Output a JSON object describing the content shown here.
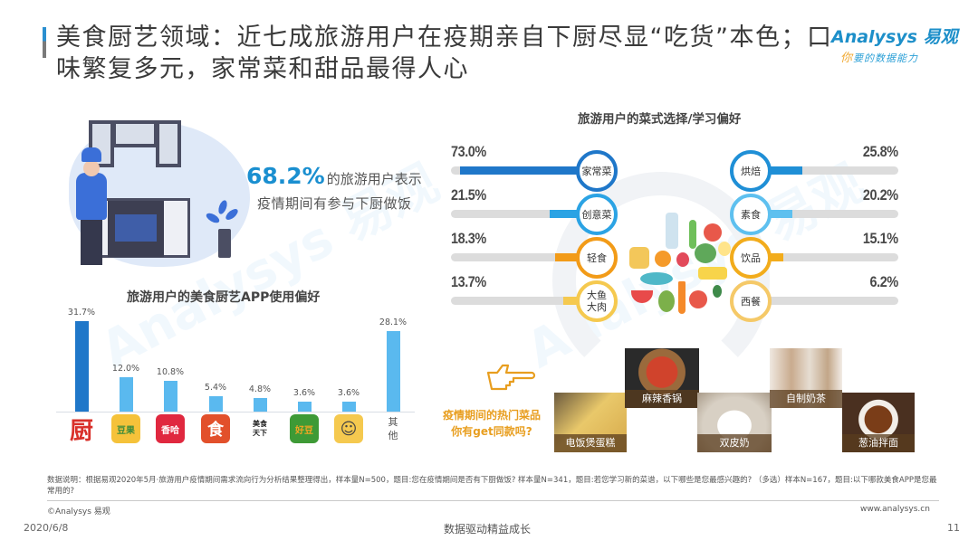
{
  "header": {
    "title": "美食厨艺领域：近七成旅游用户在疫期亲自下厨尽显“吃货”本色；口味繁复多元，家常菜和甜品最得人心",
    "logo_main": "Analysys 易观",
    "logo_sub_first": "你",
    "logo_sub_rest": "要的数据能力"
  },
  "highlight": {
    "percent": "68.2%",
    "line1_rest": "的旅游用户表示",
    "line2": "疫情期间有参与下厨做饭"
  },
  "colors": {
    "accent_blue": "#1f77c9",
    "light_blue": "#5ab9ef",
    "orange": "#f29b18",
    "yellow": "#f5c94f",
    "track_gray": "#dcdcdc"
  },
  "chart_data": [
    {
      "type": "bar",
      "title": "旅游用户的美食厨艺APP使用偏好",
      "categories": [
        "下厨房",
        "豆果美食",
        "香哈菜谱",
        "美食杰",
        "美食天下",
        "好豆菜谱",
        "菜谱大全",
        "其他"
      ],
      "values": [
        31.7,
        12.0,
        10.8,
        5.4,
        4.8,
        3.6,
        3.6,
        28.1
      ],
      "value_labels": [
        "31.7%",
        "12.0%",
        "10.8%",
        "5.4%",
        "4.8%",
        "3.6%",
        "3.6%",
        "28.1%"
      ],
      "xlabel": "",
      "ylabel": "",
      "ylim": [
        0,
        35
      ],
      "grid": false,
      "unit": "%"
    },
    {
      "type": "bar",
      "orientation": "horizontal",
      "title": "旅游用户的菜式选择/学习偏好",
      "categories": [
        "家常菜",
        "创意菜",
        "轻食",
        "大鱼大肉",
        "烘焙",
        "素食",
        "饮品",
        "西餐"
      ],
      "values": [
        73.0,
        21.5,
        18.3,
        13.7,
        25.8,
        20.2,
        15.1,
        6.2
      ],
      "value_labels": [
        "73.0%",
        "21.5%",
        "18.3%",
        "13.7%",
        "25.8%",
        "20.2%",
        "15.1%",
        "6.2%"
      ],
      "xlim": [
        0,
        100
      ],
      "unit": "%"
    }
  ],
  "app_chart": {
    "title": "旅游用户的美食厨艺APP使用偏好",
    "items": [
      {
        "label": "31.7%",
        "value": 31.7,
        "icon_text": "厨",
        "icon_bg": "#ffffff",
        "icon_color": "#d9302a",
        "icon_name": "xiachufang-app-icon"
      },
      {
        "label": "12.0%",
        "value": 12.0,
        "icon_text": "豆果",
        "icon_bg": "#f5c23a",
        "icon_color": "#3a8a3a",
        "icon_name": "douguo-app-icon"
      },
      {
        "label": "10.8%",
        "value": 10.8,
        "icon_text": "香哈",
        "icon_bg": "#e0283f",
        "icon_color": "#ffffff",
        "icon_name": "xiangha-app-icon"
      },
      {
        "label": "5.4%",
        "value": 5.4,
        "icon_text": "食",
        "icon_bg": "#e2502b",
        "icon_color": "#ffffff",
        "icon_name": "meishij-app-icon"
      },
      {
        "label": "4.8%",
        "value": 4.8,
        "icon_text": "美食天下",
        "icon_bg": "#ffffff",
        "icon_color": "#222222",
        "icon_name": "meishitianxia-app-icon"
      },
      {
        "label": "3.6%",
        "value": 3.6,
        "icon_text": "好豆",
        "icon_bg": "#3e9a36",
        "icon_color": "#f5a623",
        "icon_name": "haodou-app-icon"
      },
      {
        "label": "3.6%",
        "value": 3.6,
        "icon_text": "☺",
        "icon_bg": "#f5c94f",
        "icon_color": "#444444",
        "icon_name": "chef-face-app-icon"
      },
      {
        "label": "28.1%",
        "value": 28.1,
        "icon_text": "其\n他",
        "icon_bg": "#ffffff",
        "icon_color": "#555555",
        "icon_name": "other-label"
      }
    ]
  },
  "dish_chart": {
    "title": "旅游用户的菜式选择/学习偏好",
    "left": [
      {
        "name": "家常菜",
        "pct": "73.0%",
        "value": 73.0,
        "color": "#1f77c9"
      },
      {
        "name": "创意菜",
        "pct": "21.5%",
        "value": 21.5,
        "color": "#2ba3e4"
      },
      {
        "name": "轻食",
        "pct": "18.3%",
        "value": 18.3,
        "color": "#f29b18"
      },
      {
        "name": "大鱼\n大肉",
        "pct": "13.7%",
        "value": 13.7,
        "color": "#f5c94f"
      }
    ],
    "right": [
      {
        "name": "烘焙",
        "pct": "25.8%",
        "value": 25.8,
        "color": "#1f8fd6"
      },
      {
        "name": "素食",
        "pct": "20.2%",
        "value": 20.2,
        "color": "#5ec0ef"
      },
      {
        "name": "饮品",
        "pct": "15.1%",
        "value": 15.1,
        "color": "#f2ac1c"
      },
      {
        "name": "西餐",
        "pct": "6.2%",
        "value": 6.2,
        "color": "#f5c968"
      }
    ]
  },
  "hot_dishes": {
    "prompt_line1": "疫情期间的热门菜品",
    "prompt_line2": "你有get同款吗?",
    "items": [
      {
        "caption": "电饭煲蛋糕"
      },
      {
        "caption": "麻辣香锅"
      },
      {
        "caption": "双皮奶"
      },
      {
        "caption": "自制奶茶"
      },
      {
        "caption": "葱油拌面"
      }
    ]
  },
  "footer": {
    "note": "数据说明：根据易观2020年5月·旅游用户疫情期间需求流向行为分析结果整理得出，样本量N=500，题目:您在疫情期间是否有下厨做饭? 样本量N=341，题目:若您学习新的菜谱，以下哪些是您最感兴趣的? （多选）样本N=167，题目:以下哪款美食APP是您最常用的?",
    "copyright": "©Analysys 易观",
    "website": "www.analysys.cn",
    "date": "2020/6/8",
    "slogan": "数据驱动精益成长",
    "page": "11"
  }
}
